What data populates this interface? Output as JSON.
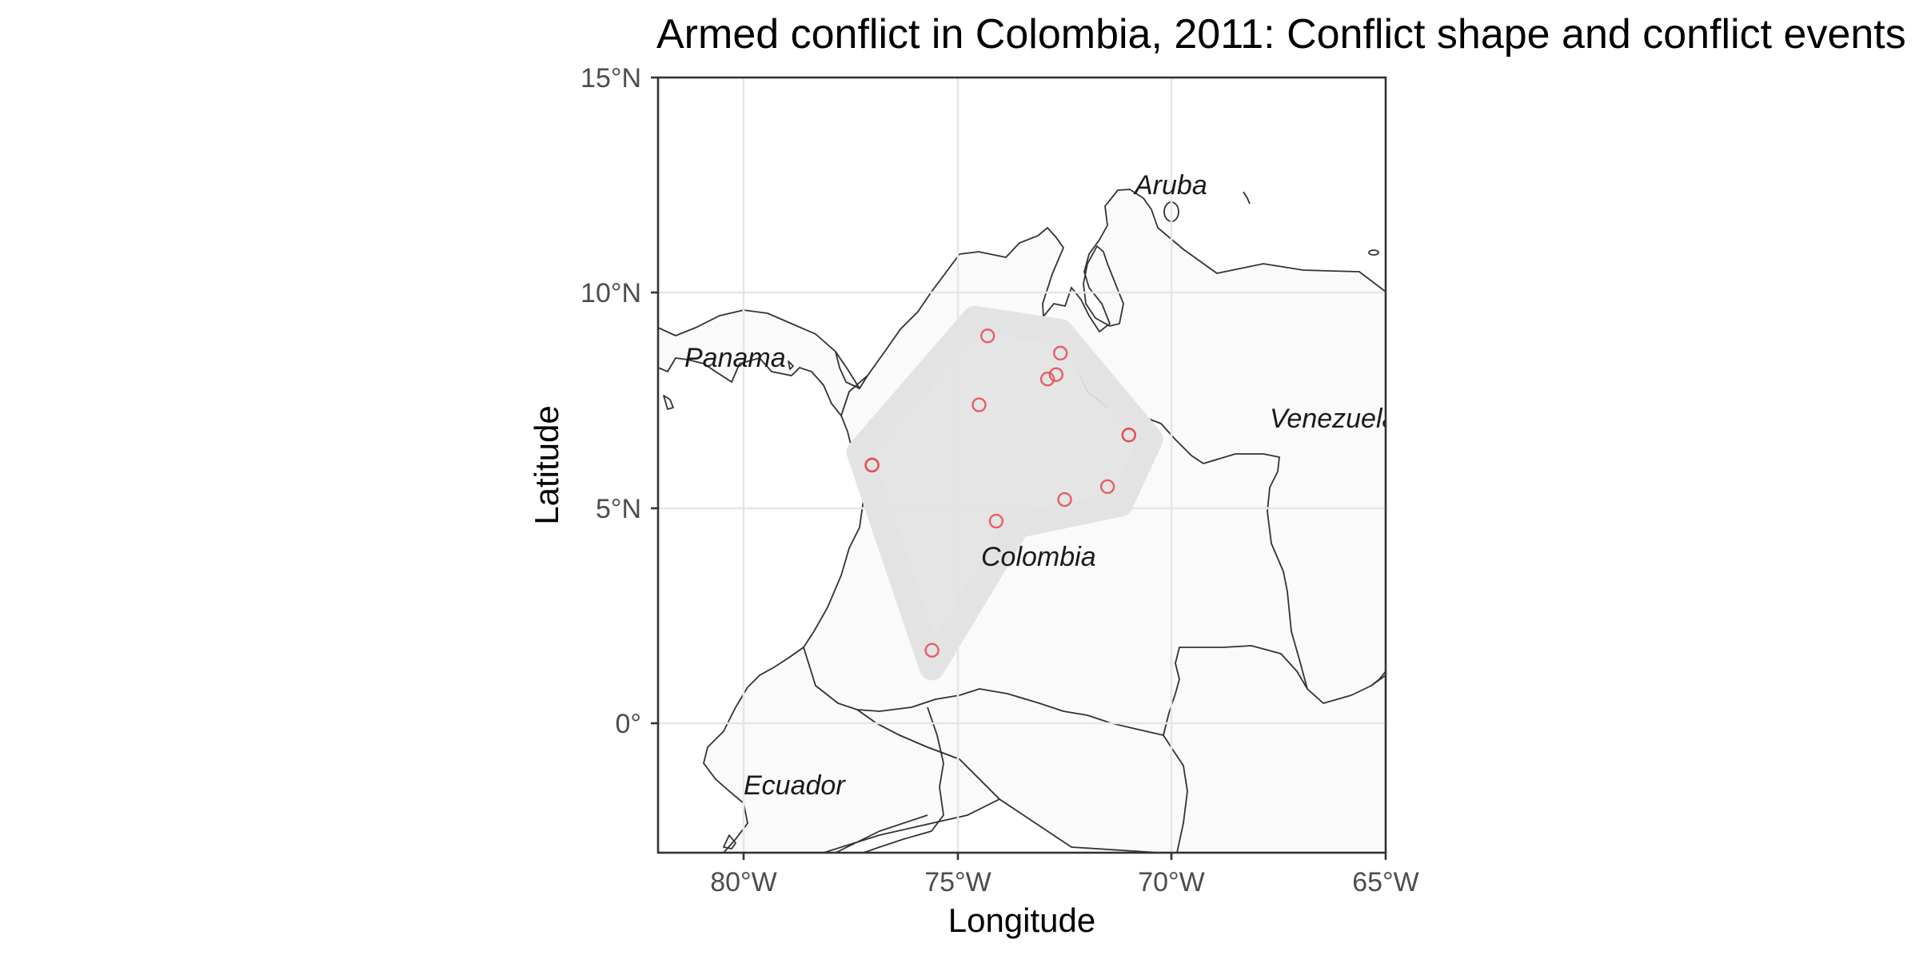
{
  "chart_data": {
    "type": "map",
    "title": "Armed conflict in Colombia, 2011: Conflict shape and conflict events",
    "xlabel": "Longitude",
    "ylabel": "Latitude",
    "xlim": [
      -82,
      -65
    ],
    "ylim": [
      -3,
      15
    ],
    "x_ticks": [
      {
        "value": -80,
        "label": "80°W"
      },
      {
        "value": -75,
        "label": "75°W"
      },
      {
        "value": -70,
        "label": "70°W"
      },
      {
        "value": -65,
        "label": "65°W"
      }
    ],
    "y_ticks": [
      {
        "value": 15,
        "label": "15°N"
      },
      {
        "value": 10,
        "label": "10°N"
      },
      {
        "value": 5,
        "label": "5°N"
      },
      {
        "value": 0,
        "label": "0°"
      }
    ],
    "grid": true,
    "country_labels": [
      {
        "name": "Aruba",
        "lon": -70.0,
        "lat": 12.25
      },
      {
        "name": "Panama",
        "lon": -80.7,
        "lat": 8.3
      },
      {
        "name": "Venezuela",
        "lon": -66.5,
        "lat": 7.0
      },
      {
        "name": "Colombia",
        "lon": -73.8,
        "lat": 3.8
      },
      {
        "name": "Ecuador",
        "lon": -78.8,
        "lat": -1.5
      }
    ],
    "conflict_shape": {
      "fill_color": "#e3e3e3",
      "vertices": [
        [
          -77.3,
          6.3
        ],
        [
          -74.6,
          9.4
        ],
        [
          -72.6,
          9.1
        ],
        [
          -70.5,
          6.6
        ],
        [
          -71.2,
          5.1
        ],
        [
          -73.6,
          4.6
        ],
        [
          -75.6,
          1.3
        ]
      ]
    },
    "events": {
      "color": "#e8474f",
      "points": [
        {
          "lon": -74.3,
          "lat": 9.0
        },
        {
          "lon": -72.6,
          "lat": 8.6
        },
        {
          "lon": -72.9,
          "lat": 8.0
        },
        {
          "lon": -72.7,
          "lat": 8.1
        },
        {
          "lon": -74.5,
          "lat": 7.4
        },
        {
          "lon": -71.0,
          "lat": 6.7
        },
        {
          "lon": -71.0,
          "lat": 6.7
        },
        {
          "lon": -77.0,
          "lat": 6.0
        },
        {
          "lon": -77.0,
          "lat": 6.0
        },
        {
          "lon": -71.5,
          "lat": 5.5
        },
        {
          "lon": -72.5,
          "lat": 5.2
        },
        {
          "lon": -74.1,
          "lat": 4.7
        },
        {
          "lon": -75.6,
          "lat": 1.7
        }
      ]
    }
  }
}
